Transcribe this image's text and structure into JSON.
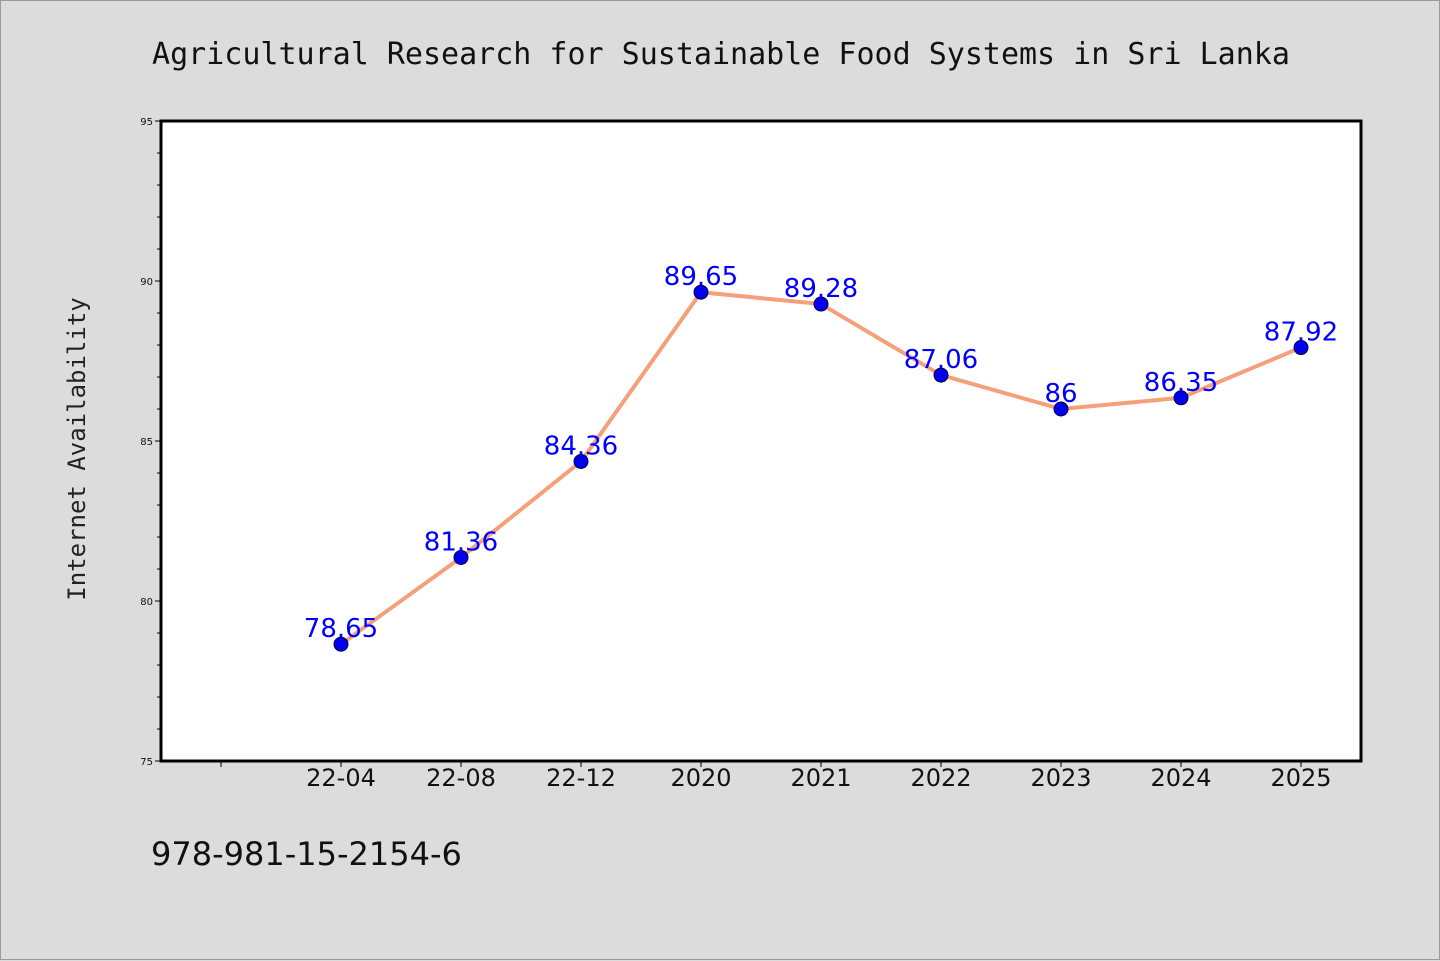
{
  "chart_data": {
    "type": "line",
    "title": "Agricultural Research for Sustainable Food Systems in Sri Lanka",
    "xlabel": "",
    "ylabel": "Internet Availability",
    "categories": [
      "22-04",
      "22-08",
      "22-12",
      "2020",
      "2021",
      "2022",
      "2023",
      "2024",
      "2025"
    ],
    "series": [
      {
        "values": [
          78.65,
          81.36,
          84.36,
          89.65,
          89.28,
          87.06,
          86,
          86.35,
          87.92
        ],
        "labels": [
          "78.65",
          "81.36",
          "84.36",
          "89.65",
          "89.28",
          "87.06",
          "86",
          "86.35",
          "87.92"
        ]
      }
    ],
    "ylim": [
      75,
      95
    ],
    "yticks": [
      "75",
      "80",
      "85",
      "90",
      "95"
    ],
    "grid": false,
    "legend": "none",
    "colors": {
      "line": "#f4a07a",
      "marker": "#0000ee",
      "label": "#0000ff",
      "background": "#dcdcdc",
      "plot_background": "#ffffff"
    }
  },
  "footer_text": "978-981-15-2154-6"
}
